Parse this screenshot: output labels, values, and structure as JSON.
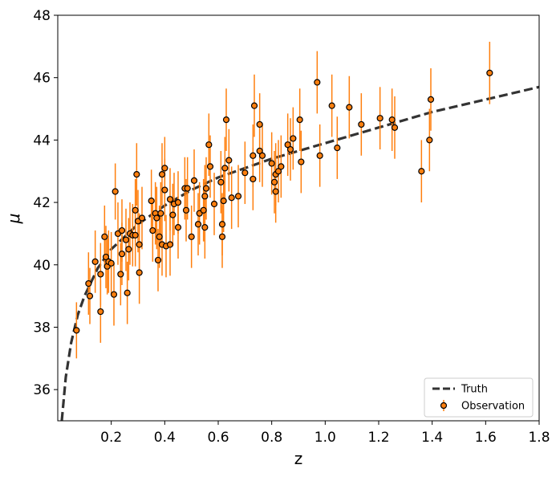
{
  "chart_data": {
    "type": "scatter",
    "xlabel": "z",
    "ylabel": "μ",
    "xlim": [
      0,
      1.8
    ],
    "ylim": [
      35,
      48
    ],
    "xticks": [
      0.2,
      0.4,
      0.6,
      0.8,
      {
        "value": 1,
        "label": "1.0"
      },
      1.2,
      1.4,
      1.6,
      1.8
    ],
    "yticks": [
      36,
      38,
      40,
      42,
      44,
      46,
      48
    ],
    "legend": "lower right",
    "series": [
      {
        "name": "Truth",
        "kind": "line",
        "color": "#333333",
        "dashed": true,
        "x": [
          0.015,
          0.03,
          0.05,
          0.075,
          0.1,
          0.15,
          0.2,
          0.3,
          0.4,
          0.5,
          0.6,
          0.8,
          1.0,
          1.2,
          1.4,
          1.6,
          1.8
        ],
        "y": [
          35.0,
          36.4,
          37.5,
          38.4,
          39.0,
          39.9,
          40.5,
          41.3,
          41.9,
          42.4,
          42.8,
          43.4,
          43.9,
          44.4,
          44.9,
          45.3,
          45.7
        ]
      },
      {
        "name": "Observation",
        "kind": "errorbar",
        "color": "#ff7f0e",
        "edgecolor": "#000000",
        "x": [
          0.07,
          0.115,
          0.12,
          0.14,
          0.16,
          0.16,
          0.175,
          0.18,
          0.185,
          0.19,
          0.2,
          0.21,
          0.215,
          0.225,
          0.235,
          0.24,
          0.24,
          0.255,
          0.26,
          0.265,
          0.27,
          0.28,
          0.29,
          0.29,
          0.295,
          0.3,
          0.305,
          0.305,
          0.315,
          0.35,
          0.355,
          0.365,
          0.37,
          0.375,
          0.38,
          0.385,
          0.39,
          0.39,
          0.4,
          0.4,
          0.405,
          0.42,
          0.42,
          0.43,
          0.435,
          0.45,
          0.45,
          0.475,
          0.48,
          0.485,
          0.5,
          0.51,
          0.525,
          0.53,
          0.545,
          0.55,
          0.55,
          0.555,
          0.565,
          0.57,
          0.585,
          0.61,
          0.615,
          0.615,
          0.62,
          0.625,
          0.63,
          0.64,
          0.65,
          0.675,
          0.7,
          0.73,
          0.73,
          0.735,
          0.755,
          0.755,
          0.765,
          0.8,
          0.81,
          0.815,
          0.815,
          0.825,
          0.835,
          0.86,
          0.87,
          0.88,
          0.905,
          0.91,
          0.97,
          0.98,
          1.025,
          1.045,
          1.09,
          1.135,
          1.205,
          1.25,
          1.26,
          1.36,
          1.39,
          1.395,
          1.615
        ],
        "y": [
          37.9,
          39.4,
          39.0,
          40.1,
          38.5,
          39.7,
          40.9,
          40.25,
          39.95,
          40.1,
          40.05,
          39.05,
          42.35,
          41.0,
          39.7,
          41.1,
          40.35,
          40.8,
          39.1,
          40.5,
          41.0,
          40.95,
          40.95,
          41.75,
          42.9,
          41.4,
          40.65,
          39.75,
          41.5,
          42.05,
          41.1,
          41.65,
          41.5,
          40.15,
          40.9,
          41.65,
          42.9,
          40.65,
          43.1,
          42.4,
          40.6,
          40.65,
          42.1,
          41.6,
          41.95,
          42.0,
          41.2,
          42.45,
          41.75,
          42.45,
          40.9,
          42.7,
          41.3,
          41.65,
          41.75,
          42.2,
          41.2,
          42.45,
          43.85,
          43.15,
          41.95,
          42.65,
          40.9,
          41.3,
          42.05,
          43.1,
          44.65,
          43.35,
          42.15,
          42.2,
          42.95,
          43.5,
          42.75,
          45.1,
          43.65,
          44.5,
          43.5,
          43.25,
          42.65,
          42.9,
          42.35,
          43.0,
          43.15,
          43.85,
          43.7,
          44.05,
          44.65,
          43.3,
          45.85,
          43.5,
          45.1,
          43.75,
          45.05,
          44.5,
          44.7,
          44.65,
          44.4,
          43.0,
          44.0,
          45.3,
          46.15
        ],
        "errors": [
          0.9,
          1.0,
          0.9,
          1.0,
          1.0,
          1.0,
          1.0,
          1.0,
          0.9,
          1.0,
          1.0,
          1.0,
          0.9,
          1.0,
          1.0,
          1.0,
          1.0,
          1.0,
          1.0,
          1.0,
          1.0,
          1.0,
          1.0,
          1.0,
          1.0,
          1.0,
          1.0,
          1.0,
          1.0,
          1.0,
          1.0,
          1.0,
          1.0,
          1.0,
          1.0,
          1.0,
          1.0,
          1.0,
          1.0,
          1.0,
          1.0,
          1.0,
          1.0,
          1.0,
          1.0,
          1.0,
          1.0,
          1.0,
          1.0,
          1.0,
          1.0,
          1.0,
          1.0,
          1.0,
          1.0,
          1.0,
          1.0,
          1.0,
          1.0,
          1.0,
          1.0,
          1.0,
          1.0,
          1.0,
          1.0,
          1.0,
          1.0,
          1.0,
          1.0,
          1.0,
          1.0,
          1.0,
          1.0,
          1.0,
          1.0,
          1.0,
          1.0,
          1.0,
          1.0,
          1.0,
          1.0,
          1.0,
          1.0,
          1.0,
          1.0,
          1.0,
          1.0,
          1.0,
          1.0,
          1.0,
          1.0,
          1.0,
          1.0,
          1.0,
          1.0,
          1.0,
          1.0,
          1.0,
          1.0,
          1.0,
          1.0
        ]
      }
    ]
  }
}
